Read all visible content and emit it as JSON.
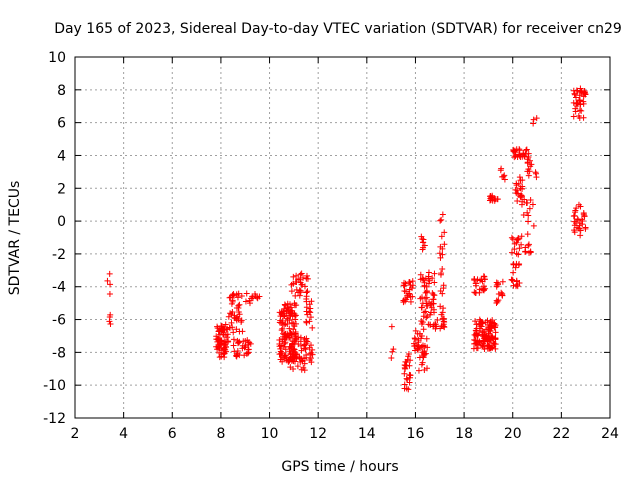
{
  "chart_data": {
    "type": "scatter",
    "title": "Day 165 of 2023, Sidereal Day-to-day VTEC variation (SDTVAR) for receiver cn29",
    "xlabel": "GPS time / hours",
    "ylabel": "SDTVAR / TECUs",
    "xlim": [
      2,
      24
    ],
    "ylim": [
      -12,
      10
    ],
    "xticks": [
      2,
      4,
      6,
      8,
      10,
      12,
      14,
      16,
      18,
      20,
      22,
      24
    ],
    "yticks": [
      -12,
      -10,
      -8,
      -6,
      -4,
      -2,
      0,
      2,
      4,
      6,
      8,
      10
    ],
    "grid": true,
    "marker": "+",
    "color": "#ff0000",
    "clusters": [
      {
        "x0": 3.3,
        "x1": 3.5,
        "y0": -7.0,
        "y1": -3.2,
        "n": 8
      },
      {
        "x0": 7.8,
        "x1": 8.3,
        "y0": -8.3,
        "y1": -6.3,
        "n": 70
      },
      {
        "x0": 8.3,
        "x1": 8.9,
        "y0": -6.8,
        "y1": -4.4,
        "n": 40
      },
      {
        "x0": 8.5,
        "x1": 9.3,
        "y0": -8.3,
        "y1": -7.2,
        "n": 30
      },
      {
        "x0": 9.0,
        "x1": 9.6,
        "y0": -5.0,
        "y1": -4.4,
        "n": 12
      },
      {
        "x0": 10.4,
        "x1": 11.1,
        "y0": -8.6,
        "y1": -5.0,
        "n": 140
      },
      {
        "x0": 10.8,
        "x1": 11.5,
        "y0": -9.2,
        "y1": -7.0,
        "n": 40
      },
      {
        "x0": 10.9,
        "x1": 11.6,
        "y0": -4.6,
        "y1": -3.1,
        "n": 30
      },
      {
        "x0": 11.5,
        "x1": 11.8,
        "y0": -8.6,
        "y1": -4.4,
        "n": 30
      },
      {
        "x0": 15.0,
        "x1": 15.1,
        "y0": -8.4,
        "y1": -6.2,
        "n": 4
      },
      {
        "x0": 15.5,
        "x1": 15.8,
        "y0": -10.3,
        "y1": -8.0,
        "n": 25
      },
      {
        "x0": 15.5,
        "x1": 15.9,
        "y0": -5.0,
        "y1": -3.6,
        "n": 25
      },
      {
        "x0": 15.8,
        "x1": 16.1,
        "y0": -8.0,
        "y1": -6.6,
        "n": 10
      },
      {
        "x0": 16.1,
        "x1": 16.5,
        "y0": -9.2,
        "y1": -6.8,
        "n": 30
      },
      {
        "x0": 16.2,
        "x1": 16.4,
        "y0": -1.8,
        "y1": -0.9,
        "n": 8
      },
      {
        "x0": 16.2,
        "x1": 16.8,
        "y0": -6.6,
        "y1": -3.0,
        "n": 60
      },
      {
        "x0": 16.8,
        "x1": 17.2,
        "y0": -6.6,
        "y1": -6.0,
        "n": 14
      },
      {
        "x0": 17.0,
        "x1": 17.2,
        "y0": -6.0,
        "y1": 0.6,
        "n": 25
      },
      {
        "x0": 18.4,
        "x1": 18.9,
        "y0": -4.4,
        "y1": -3.3,
        "n": 25
      },
      {
        "x0": 18.4,
        "x1": 19.3,
        "y0": -7.8,
        "y1": -6.0,
        "n": 120
      },
      {
        "x0": 19.0,
        "x1": 19.4,
        "y0": 1.2,
        "y1": 1.6,
        "n": 14
      },
      {
        "x0": 19.3,
        "x1": 19.6,
        "y0": -5.0,
        "y1": -3.5,
        "n": 15
      },
      {
        "x0": 19.5,
        "x1": 19.7,
        "y0": 2.5,
        "y1": 3.3,
        "n": 6
      },
      {
        "x0": 19.9,
        "x1": 20.3,
        "y0": -4.0,
        "y1": -1.0,
        "n": 30
      },
      {
        "x0": 20.0,
        "x1": 20.6,
        "y0": 3.9,
        "y1": 4.4,
        "n": 25
      },
      {
        "x0": 20.1,
        "x1": 20.4,
        "y0": 1.0,
        "y1": 2.8,
        "n": 20
      },
      {
        "x0": 20.3,
        "x1": 20.9,
        "y0": -2.0,
        "y1": 1.5,
        "n": 25
      },
      {
        "x0": 20.6,
        "x1": 20.8,
        "y0": 2.3,
        "y1": 4.8,
        "n": 12
      },
      {
        "x0": 20.8,
        "x1": 21.0,
        "y0": 5.8,
        "y1": 6.3,
        "n": 3
      },
      {
        "x0": 20.9,
        "x1": 21.0,
        "y0": 2.6,
        "y1": 3.0,
        "n": 3
      },
      {
        "x0": 22.5,
        "x1": 23.0,
        "y0": 6.2,
        "y1": 8.2,
        "n": 40
      },
      {
        "x0": 22.5,
        "x1": 23.0,
        "y0": -0.9,
        "y1": 1.0,
        "n": 30
      }
    ]
  }
}
